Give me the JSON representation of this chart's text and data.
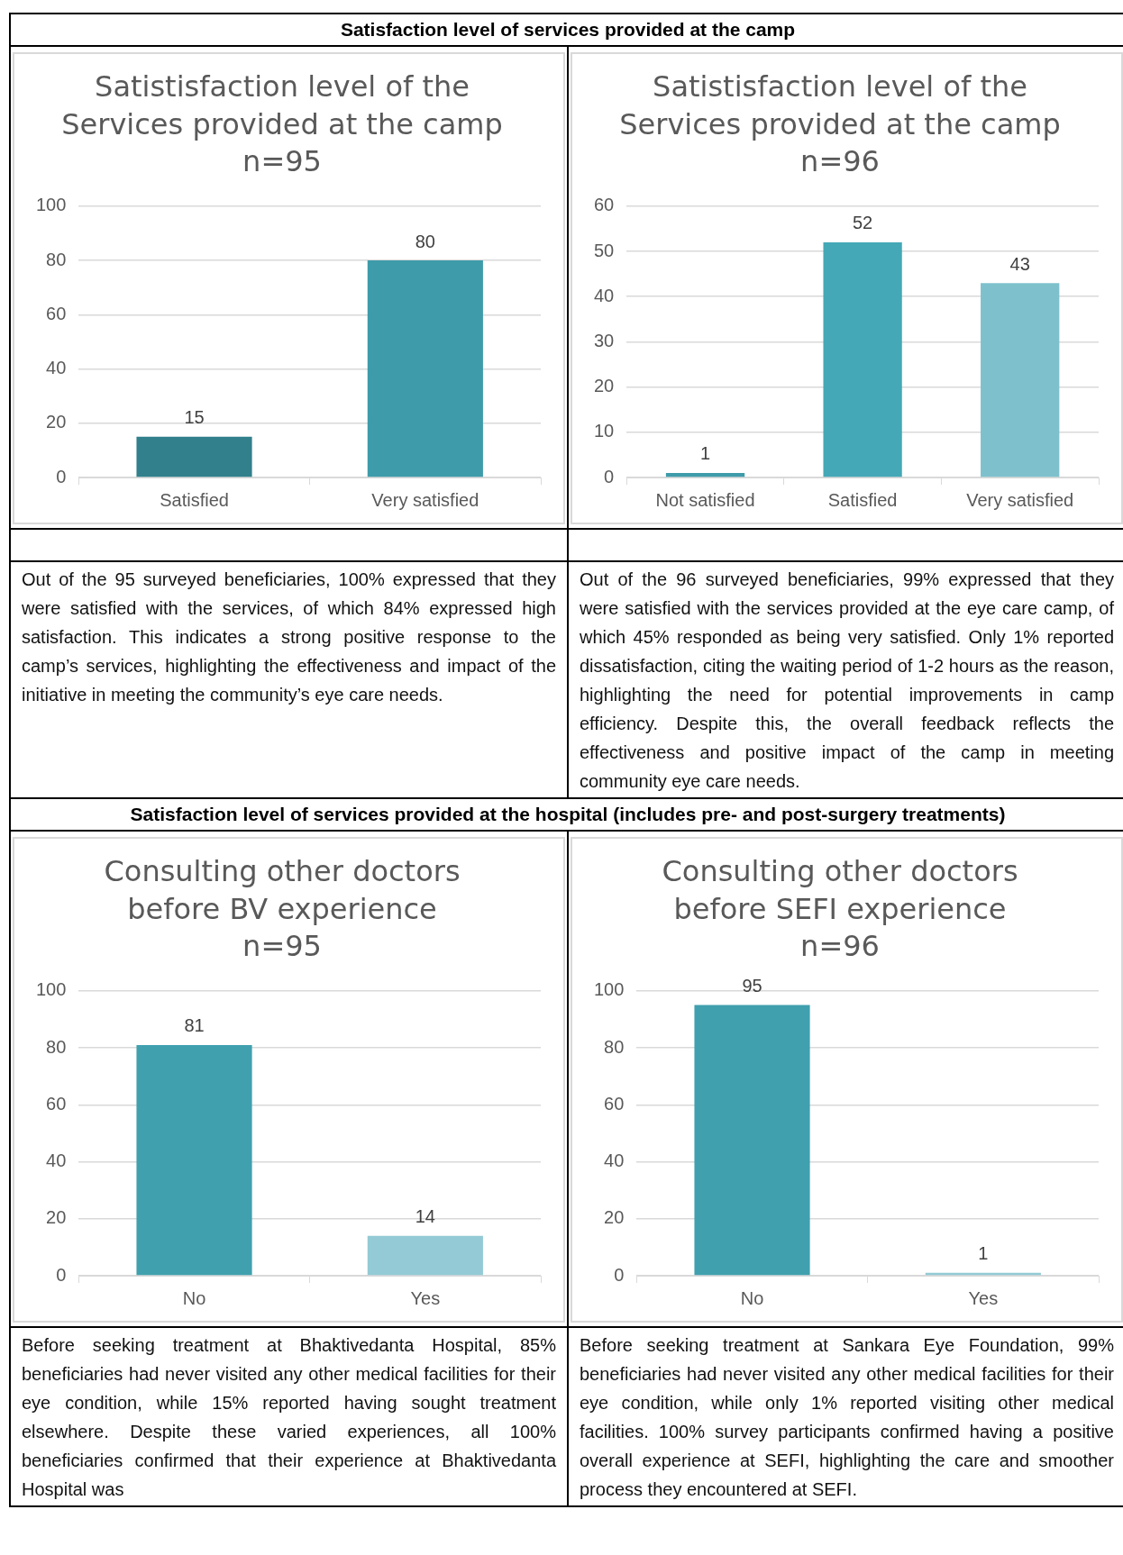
{
  "chart_data": [
    {
      "type": "bar",
      "subtitle": "Satisfaction level of services provided at the camp",
      "title": "Satistisfaction level of the\nServices provided at the camp\nn=95",
      "categories": [
        "Satisfied",
        "Very satisfied"
      ],
      "values": [
        15,
        80
      ],
      "colors": [
        "#31808c",
        "#3e9baa"
      ],
      "ylim": [
        0,
        100
      ],
      "yticks": [
        0,
        20,
        40,
        60,
        80,
        100
      ],
      "grid": "y",
      "data_labels": true,
      "annotations": [
        "Out of the 95 surveyed beneficiaries, 100% expressed that they were satisfied with the services, of which 84% expressed high satisfaction. This indicates a strong positive response to the camp’s services, highlighting the effectiveness and impact of the initiative in meeting the community’s eye care needs."
      ]
    },
    {
      "type": "bar",
      "title": "Satistisfaction level of the\nServices provided at the camp\nn=96",
      "categories": [
        "Not satisfied",
        "Satisfied",
        "Very satisfied"
      ],
      "values": [
        1,
        52,
        43
      ],
      "colors": [
        "#3e9baa",
        "#44a8b6",
        "#7ec1cc"
      ],
      "ylim": [
        0,
        60
      ],
      "yticks": [
        0,
        10,
        20,
        30,
        40,
        50,
        60
      ],
      "grid": "y",
      "data_labels": true,
      "annotations": [
        "Out of the 96 surveyed beneficiaries, 99% expressed that they were satisfied with the services provided at the eye care camp, of which 45% responded as being very satisfied. Only 1% reported dissatisfaction, citing the waiting period of 1-2 hours as the reason, highlighting the need for potential improvements in camp efficiency. Despite this, the overall feedback reflects the effectiveness and positive impact of the camp in meeting community eye care needs."
      ]
    },
    {
      "type": "bar",
      "subtitle": "Satisfaction level of services provided at the hospital (includes pre- and post-surgery treatments)",
      "title": "Consulting other doctors\nbefore BV experience\nn=95",
      "categories": [
        "No",
        "Yes"
      ],
      "values": [
        81,
        14
      ],
      "colors": [
        "#40a0ae",
        "#93cad5"
      ],
      "ylim": [
        0,
        100
      ],
      "yticks": [
        0,
        20,
        40,
        60,
        80,
        100
      ],
      "grid": "y",
      "data_labels": true,
      "annotations": [
        "Before seeking treatment at Bhaktivedanta Hospital, 85% beneficiaries had never visited any other medical facilities for their eye condition, while 15% reported having sought treatment elsewhere. Despite these varied experiences, all 100% beneficiaries confirmed that their experience at Bhaktivedanta Hospital was"
      ]
    },
    {
      "type": "bar",
      "title": "Consulting other doctors\nbefore SEFI experience\nn=96",
      "categories": [
        "No",
        "Yes"
      ],
      "values": [
        95,
        1
      ],
      "colors": [
        "#40a0ae",
        "#93cad5"
      ],
      "ylim": [
        0,
        100
      ],
      "yticks": [
        0,
        20,
        40,
        60,
        80,
        100
      ],
      "grid": "y",
      "data_labels": true,
      "annotations": [
        "Before seeking treatment at Sankara Eye Foundation, 99% beneficiaries had never visited any other medical facilities for their eye condition, while only 1% reported visiting other medical facilities. 100% survey participants confirmed having a positive overall experience at SEFI, highlighting the care and smoother process they encountered at SEFI."
      ]
    }
  ]
}
